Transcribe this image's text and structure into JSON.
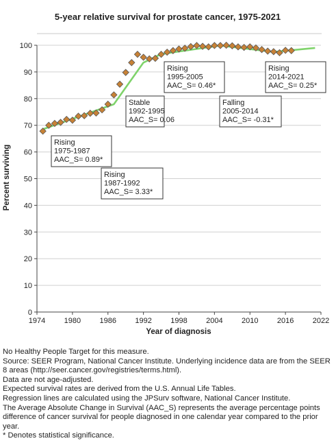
{
  "chart_data": {
    "type": "line",
    "title": "5-year relative survival for prostate cancer, 1975-2021",
    "xlabel": "Year of diagnosis",
    "ylabel": "Percent surviving",
    "xlim": [
      1974,
      2022
    ],
    "ylim": [
      0,
      100
    ],
    "x_ticks": [
      1974,
      1980,
      1986,
      1992,
      1998,
      2004,
      2010,
      2016,
      2022
    ],
    "y_ticks": [
      0,
      10,
      20,
      30,
      40,
      50,
      60,
      70,
      80,
      90,
      100
    ],
    "grid": true,
    "colors": {
      "regression_line": "#7fd36b",
      "marker_fill": "#c88236",
      "marker_stroke": "#555555"
    },
    "series": [
      {
        "kind": "observed",
        "marker": "diamond",
        "x": [
          1975,
          1976,
          1977,
          1978,
          1979,
          1980,
          1981,
          1982,
          1983,
          1984,
          1985,
          1986,
          1987,
          1988,
          1989,
          1990,
          1991,
          1992,
          1993,
          1994,
          1995,
          1996,
          1997,
          1998,
          1999,
          2000,
          2001,
          2002,
          2003,
          2004,
          2005,
          2006,
          2007,
          2008,
          2009,
          2010,
          2011,
          2012,
          2013,
          2014,
          2015,
          2016,
          2017
        ],
        "y": [
          67.8,
          70.0,
          70.7,
          71.1,
          72.2,
          71.9,
          73.4,
          73.6,
          74.5,
          74.6,
          75.8,
          77.9,
          81.4,
          85.4,
          89.8,
          93.5,
          96.6,
          95.5,
          94.9,
          95.1,
          96.6,
          97.4,
          98.0,
          98.6,
          98.9,
          99.5,
          99.9,
          99.6,
          99.4,
          99.9,
          99.9,
          100.0,
          99.8,
          99.4,
          99.2,
          99.4,
          99.0,
          98.4,
          97.8,
          97.6,
          97.2,
          98.1,
          98.0
        ]
      },
      {
        "kind": "regression",
        "x": [
          1975,
          1987,
          1992,
          1995,
          2005,
          2014,
          2021
        ],
        "y": [
          68.5,
          77.9,
          93.5,
          96.7,
          99.9,
          97.5,
          99.0
        ]
      }
    ],
    "annotations": [
      {
        "trend": "Rising",
        "years": "1975-1987",
        "aac": "AAC_S=  0.89*"
      },
      {
        "trend": "Rising",
        "years": "1987-1992",
        "aac": "AAC_S=  3.33*"
      },
      {
        "trend": "Stable",
        "years": "1992-1995",
        "aac": "AAC_S=  0.06"
      },
      {
        "trend": "Rising",
        "years": "1995-2005",
        "aac": "AAC_S=  0.46*"
      },
      {
        "trend": "Falling",
        "years": "2005-2014",
        "aac": "AAC_S= -0.31*"
      },
      {
        "trend": "Rising",
        "years": "2014-2021",
        "aac": "AAC_S=  0.25*"
      }
    ]
  },
  "notes": [
    "No Healthy People Target for this measure.",
    "Source: SEER Program, National Cancer Institute. Underlying incidence data are from the SEER 8 areas (http://seer.cancer.gov/registries/terms.html).",
    "Data are not age-adjusted.",
    "Expected survival rates are derived from the U.S. Annual Life Tables.",
    "Regression lines are calculated using the JPSurv software, National Cancer Institute.",
    "The Average Absolute Change in Survival (AAC_S) represents the average percentage points difference of cancer survival for people diagnosed in one calendar year compared to the prior year.",
    "* Denotes statistical significance."
  ]
}
